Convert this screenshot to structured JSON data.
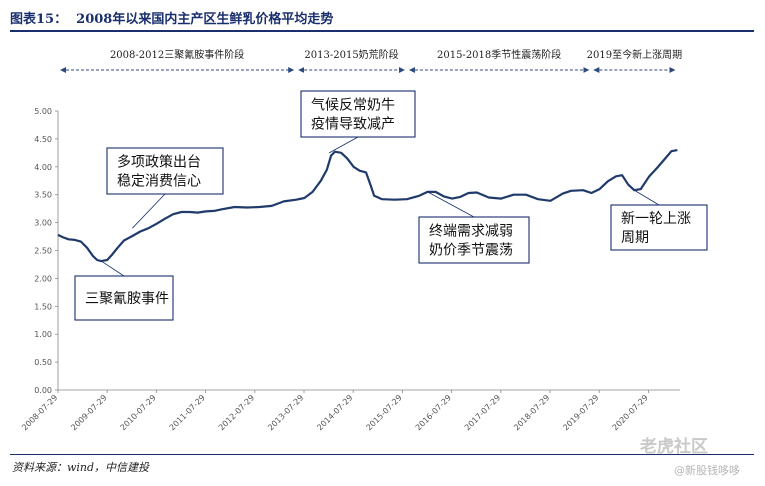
{
  "header": {
    "title": "图表15：  2008年以来国内主产区生鲜乳价格平均走势"
  },
  "footer": {
    "source": "资料来源：wind，中信建投"
  },
  "watermark": {
    "text": "老虎社区",
    "handle": "@新股钱哆哆"
  },
  "colors": {
    "line": "#1f3a6b",
    "accent": "#1a2f6e",
    "arrow": "#2c4a80"
  },
  "chart_data": {
    "type": "line",
    "title": "2008年以来国内主产区生鲜乳价格平均走势",
    "xlabel": "",
    "ylabel": "",
    "ylim": [
      0,
      5
    ],
    "yticks": [
      "0.00",
      "0.50",
      "1.00",
      "1.50",
      "2.00",
      "2.50",
      "3.00",
      "3.50",
      "4.00",
      "4.50",
      "5.00"
    ],
    "xticks": [
      "2008-07-29",
      "2009-07-29",
      "2010-07-29",
      "2011-07-29",
      "2012-07-29",
      "2013-07-29",
      "2014-07-29",
      "2015-07-29",
      "2016-07-29",
      "2017-07-29",
      "2018-07-29",
      "2019-07-29",
      "2020-07-29"
    ],
    "grid": false,
    "x_start": "2008-07-29",
    "series": [
      {
        "points": [
          [
            "2008-07-29",
            2.78
          ],
          [
            "2008-09-01",
            2.74
          ],
          [
            "2008-10-15",
            2.7
          ],
          [
            "2008-12-01",
            2.69
          ],
          [
            "2009-01-15",
            2.66
          ],
          [
            "2009-03-01",
            2.55
          ],
          [
            "2009-04-15",
            2.4
          ],
          [
            "2009-05-15",
            2.33
          ],
          [
            "2009-06-15",
            2.31
          ],
          [
            "2009-07-29",
            2.33
          ],
          [
            "2009-09-01",
            2.42
          ],
          [
            "2009-10-15",
            2.55
          ],
          [
            "2009-12-01",
            2.68
          ],
          [
            "2010-02-01",
            2.76
          ],
          [
            "2010-04-01",
            2.84
          ],
          [
            "2010-06-01",
            2.9
          ],
          [
            "2010-08-01",
            2.98
          ],
          [
            "2010-10-01",
            3.07
          ],
          [
            "2010-12-01",
            3.15
          ],
          [
            "2011-02-01",
            3.19
          ],
          [
            "2011-04-01",
            3.19
          ],
          [
            "2011-06-01",
            3.18
          ],
          [
            "2011-08-01",
            3.2
          ],
          [
            "2011-10-01",
            3.21
          ],
          [
            "2011-12-01",
            3.24
          ],
          [
            "2012-03-01",
            3.28
          ],
          [
            "2012-06-01",
            3.27
          ],
          [
            "2012-09-01",
            3.28
          ],
          [
            "2012-12-01",
            3.3
          ],
          [
            "2013-03-01",
            3.38
          ],
          [
            "2013-06-01",
            3.41
          ],
          [
            "2013-08-01",
            3.44
          ],
          [
            "2013-10-01",
            3.55
          ],
          [
            "2013-12-01",
            3.75
          ],
          [
            "2014-01-15",
            3.95
          ],
          [
            "2014-02-15",
            4.2
          ],
          [
            "2014-03-15",
            4.27
          ],
          [
            "2014-05-01",
            4.25
          ],
          [
            "2014-06-15",
            4.15
          ],
          [
            "2014-08-01",
            4.0
          ],
          [
            "2014-09-15",
            3.93
          ],
          [
            "2014-11-01",
            3.9
          ],
          [
            "2014-12-01",
            3.7
          ],
          [
            "2015-01-01",
            3.48
          ],
          [
            "2015-03-01",
            3.42
          ],
          [
            "2015-06-01",
            3.41
          ],
          [
            "2015-09-01",
            3.42
          ],
          [
            "2015-12-01",
            3.48
          ],
          [
            "2016-02-01",
            3.55
          ],
          [
            "2016-04-01",
            3.55
          ],
          [
            "2016-06-01",
            3.47
          ],
          [
            "2016-08-01",
            3.43
          ],
          [
            "2016-10-01",
            3.46
          ],
          [
            "2016-12-01",
            3.53
          ],
          [
            "2017-02-01",
            3.54
          ],
          [
            "2017-05-01",
            3.45
          ],
          [
            "2017-08-01",
            3.43
          ],
          [
            "2017-11-01",
            3.5
          ],
          [
            "2018-02-01",
            3.5
          ],
          [
            "2018-05-01",
            3.42
          ],
          [
            "2018-08-01",
            3.39
          ],
          [
            "2018-11-01",
            3.52
          ],
          [
            "2019-01-01",
            3.57
          ],
          [
            "2019-04-01",
            3.58
          ],
          [
            "2019-06-01",
            3.53
          ],
          [
            "2019-08-01",
            3.6
          ],
          [
            "2019-10-01",
            3.74
          ],
          [
            "2019-12-01",
            3.83
          ],
          [
            "2020-01-15",
            3.85
          ],
          [
            "2020-03-01",
            3.68
          ],
          [
            "2020-04-15",
            3.58
          ],
          [
            "2020-06-01",
            3.6
          ],
          [
            "2020-08-01",
            3.82
          ],
          [
            "2020-10-01",
            3.98
          ],
          [
            "2020-12-01",
            4.15
          ],
          [
            "2021-01-15",
            4.28
          ],
          [
            "2021-03-01",
            4.3
          ]
        ]
      }
    ],
    "phases": [
      {
        "label": "2008-2012三聚氰胺事件阶段",
        "from": "2008-07-29",
        "to": "2013-06-01"
      },
      {
        "label": "2013-2015奶荒阶段",
        "from": "2013-06-01",
        "to": "2015-09-01"
      },
      {
        "label": "2015-2018季节性震荡阶段",
        "from": "2015-09-01",
        "to": "2019-06-01"
      },
      {
        "label": "2019至今新上涨周期",
        "from": "2019-06-01",
        "to": "2021-03-01"
      }
    ],
    "annotations": [
      {
        "lines": [
          "三聚氰胺事件"
        ],
        "target": [
          "2009-06-15",
          2.31
        ]
      },
      {
        "lines": [
          "多项政策出台",
          "稳定消费信心"
        ],
        "target": [
          "2010-02-01",
          2.9
        ]
      },
      {
        "lines": [
          "气候反常奶牛",
          "疫情导致减产"
        ],
        "target": [
          "2014-02-01",
          4.25
        ]
      },
      {
        "lines": [
          "终端需求减弱",
          "奶价季节震荡"
        ],
        "target": [
          "2016-02-01",
          3.55
        ]
      },
      {
        "lines": [
          "新一轮上涨",
          "周期"
        ],
        "target": [
          "2020-04-15",
          3.58
        ]
      }
    ]
  }
}
